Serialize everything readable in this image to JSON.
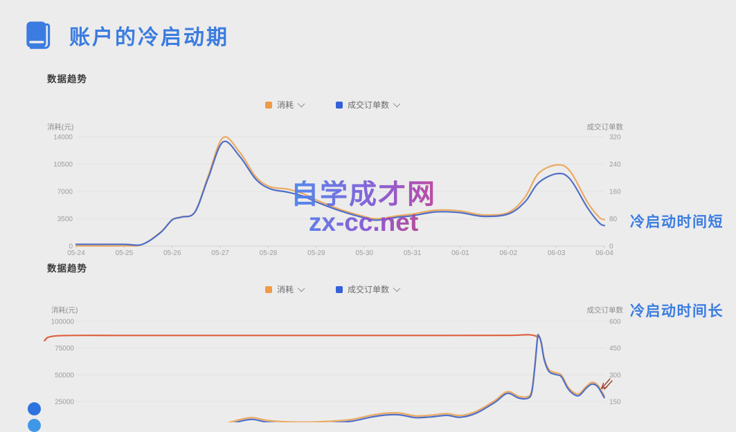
{
  "page": {
    "background_color": "#ececec",
    "header": {
      "icon": "book-icon",
      "title": "账户的冷启动期",
      "title_color": "#3b7ce0"
    },
    "watermark": {
      "line1": "自学成才网",
      "line2": "zx-cc.net"
    },
    "decor_dots_colors": [
      "#2e72e0",
      "#3f97e8"
    ]
  },
  "chart_data": [
    {
      "type": "line",
      "section_title": "数据趋势",
      "legend": [
        {
          "label": "消耗",
          "color": "#ef9a47"
        },
        {
          "label": "成交订单数",
          "color": "#3561d8"
        }
      ],
      "left_axis": {
        "title": "消耗(元)",
        "ticks": [
          0,
          3500,
          7000,
          10500,
          14000
        ],
        "max": 14000
      },
      "right_axis": {
        "title": "成交订单数",
        "ticks": [
          0,
          80,
          160,
          240,
          320
        ],
        "max": 320
      },
      "categories": [
        "05-24",
        "05-25",
        "05-26",
        "05-27",
        "05-28",
        "05-29",
        "05-30",
        "05-31",
        "06-01",
        "06-02",
        "06-03",
        "06-04"
      ],
      "x_axis_visible": true,
      "annotation": {
        "text": "冷启动时间短",
        "color": "#3b7ce0"
      },
      "series": [
        {
          "name": "消耗",
          "axis": "left",
          "color": "#ecaa62",
          "values": [
            30,
            30,
            3600,
            13900,
            7600,
            5900,
            3800,
            4100,
            4500,
            4300,
            10400,
            3400
          ],
          "points": [
            [
              0,
              30
            ],
            [
              0.09,
              30
            ],
            [
              0.125,
              200
            ],
            [
              0.16,
              1800
            ],
            [
              0.182,
              3400
            ],
            [
              0.2,
              3750
            ],
            [
              0.225,
              4400
            ],
            [
              0.25,
              9000
            ],
            [
              0.278,
              13900
            ],
            [
              0.31,
              12000
            ],
            [
              0.34,
              8900
            ],
            [
              0.367,
              7600
            ],
            [
              0.4,
              7300
            ],
            [
              0.43,
              6700
            ],
            [
              0.455,
              5900
            ],
            [
              0.5,
              4700
            ],
            [
              0.545,
              3800
            ],
            [
              0.57,
              3500
            ],
            [
              0.61,
              3900
            ],
            [
              0.637,
              4100
            ],
            [
              0.68,
              4600
            ],
            [
              0.727,
              4500
            ],
            [
              0.77,
              4000
            ],
            [
              0.818,
              4300
            ],
            [
              0.85,
              6300
            ],
            [
              0.875,
              9300
            ],
            [
              0.91,
              10400
            ],
            [
              0.935,
              9600
            ],
            [
              0.968,
              5600
            ],
            [
              0.99,
              3700
            ],
            [
              1,
              3400
            ]
          ]
        },
        {
          "name": "成交订单数",
          "axis": "right",
          "color": "#4f6fc6",
          "values": [
            1,
            1,
            80,
            305,
            170,
            129,
            83,
            89,
            98,
            94,
            212,
            60
          ],
          "points": [
            [
              0,
              5
            ],
            [
              0.09,
              5
            ],
            [
              0.125,
              5
            ],
            [
              0.16,
              40
            ],
            [
              0.182,
              77
            ],
            [
              0.2,
              85
            ],
            [
              0.225,
              100
            ],
            [
              0.25,
              200
            ],
            [
              0.278,
              305
            ],
            [
              0.31,
              262
            ],
            [
              0.34,
              196
            ],
            [
              0.367,
              168
            ],
            [
              0.4,
              158
            ],
            [
              0.43,
              146
            ],
            [
              0.455,
              129
            ],
            [
              0.5,
              103
            ],
            [
              0.545,
              83
            ],
            [
              0.57,
              76
            ],
            [
              0.61,
              85
            ],
            [
              0.637,
              89
            ],
            [
              0.68,
              100
            ],
            [
              0.727,
              98
            ],
            [
              0.77,
              87
            ],
            [
              0.818,
              94
            ],
            [
              0.85,
              130
            ],
            [
              0.875,
              185
            ],
            [
              0.91,
              212
            ],
            [
              0.935,
              196
            ],
            [
              0.968,
              112
            ],
            [
              0.99,
              68
            ],
            [
              1,
              60
            ]
          ]
        }
      ]
    },
    {
      "type": "line",
      "section_title": "数据趋势",
      "legend": [
        {
          "label": "消耗",
          "color": "#ef9a47"
        },
        {
          "label": "成交订单数",
          "color": "#3561d8"
        }
      ],
      "left_axis": {
        "title": "消耗(元)",
        "ticks": [
          25000,
          50000,
          75000,
          100000
        ],
        "max": 100000
      },
      "right_axis": {
        "title": "成交订单数",
        "ticks": [
          150,
          300,
          450,
          600
        ],
        "max": 600
      },
      "categories": [],
      "x_axis_visible": false,
      "annotation": {
        "text": "冷启动时间长",
        "color": "#3b7ce0"
      },
      "series": [
        {
          "name": "消耗-预算顶线(红色水平线)",
          "axis": "left",
          "color": "#dd5f3c",
          "points": [
            [
              -0.06,
              82000
            ],
            [
              -0.035,
              86500
            ],
            [
              0.1,
              86800
            ],
            [
              0.3,
              86800
            ],
            [
              0.5,
              86800
            ],
            [
              0.7,
              86800
            ],
            [
              0.82,
              86900
            ],
            [
              0.855,
              87500
            ],
            [
              0.873,
              85500
            ]
          ]
        },
        {
          "name": "消耗",
          "axis": "right",
          "color": "#ecaa62",
          "points": [
            [
              0.28,
              25
            ],
            [
              0.31,
              50
            ],
            [
              0.333,
              60
            ],
            [
              0.36,
              45
            ],
            [
              0.4,
              36
            ],
            [
              0.44,
              35
            ],
            [
              0.48,
              40
            ],
            [
              0.52,
              50
            ],
            [
              0.555,
              72
            ],
            [
              0.582,
              84
            ],
            [
              0.61,
              86
            ],
            [
              0.64,
              70
            ],
            [
              0.67,
              74
            ],
            [
              0.7,
              83
            ],
            [
              0.725,
              72
            ],
            [
              0.755,
              95
            ],
            [
              0.79,
              155
            ],
            [
              0.814,
              206
            ],
            [
              0.835,
              180
            ],
            [
              0.852,
              178
            ],
            [
              0.86,
              210
            ],
            [
              0.8655,
              340
            ],
            [
              0.871,
              510
            ],
            [
              0.8735,
              520
            ],
            [
              0.878,
              485
            ],
            [
              0.884,
              390
            ],
            [
              0.893,
              328
            ],
            [
              0.905,
              312
            ],
            [
              0.916,
              300
            ],
            [
              0.928,
              235
            ],
            [
              0.94,
              200
            ],
            [
              0.95,
              195
            ],
            [
              0.963,
              235
            ],
            [
              0.974,
              258
            ],
            [
              0.985,
              242
            ],
            [
              0.997,
              182
            ]
          ]
        },
        {
          "name": "成交订单数",
          "axis": "right",
          "color": "#4f6fc6",
          "points": [
            [
              0.28,
              15
            ],
            [
              0.31,
              40
            ],
            [
              0.333,
              50
            ],
            [
              0.36,
              35
            ],
            [
              0.4,
              26
            ],
            [
              0.44,
              25
            ],
            [
              0.48,
              30
            ],
            [
              0.52,
              40
            ],
            [
              0.555,
              62
            ],
            [
              0.582,
              74
            ],
            [
              0.61,
              76
            ],
            [
              0.64,
              60
            ],
            [
              0.67,
              64
            ],
            [
              0.7,
              73
            ],
            [
              0.725,
              62
            ],
            [
              0.755,
              85
            ],
            [
              0.79,
              145
            ],
            [
              0.814,
              196
            ],
            [
              0.835,
              170
            ],
            [
              0.852,
              168
            ],
            [
              0.86,
              200
            ],
            [
              0.8655,
              330
            ],
            [
              0.871,
              505
            ],
            [
              0.8735,
              518
            ],
            [
              0.878,
              480
            ],
            [
              0.884,
              380
            ],
            [
              0.893,
              318
            ],
            [
              0.905,
              302
            ],
            [
              0.916,
              290
            ],
            [
              0.928,
              225
            ],
            [
              0.94,
              190
            ],
            [
              0.95,
              185
            ],
            [
              0.963,
              225
            ],
            [
              0.974,
              248
            ],
            [
              0.985,
              232
            ],
            [
              0.997,
              172
            ]
          ]
        }
      ]
    }
  ]
}
